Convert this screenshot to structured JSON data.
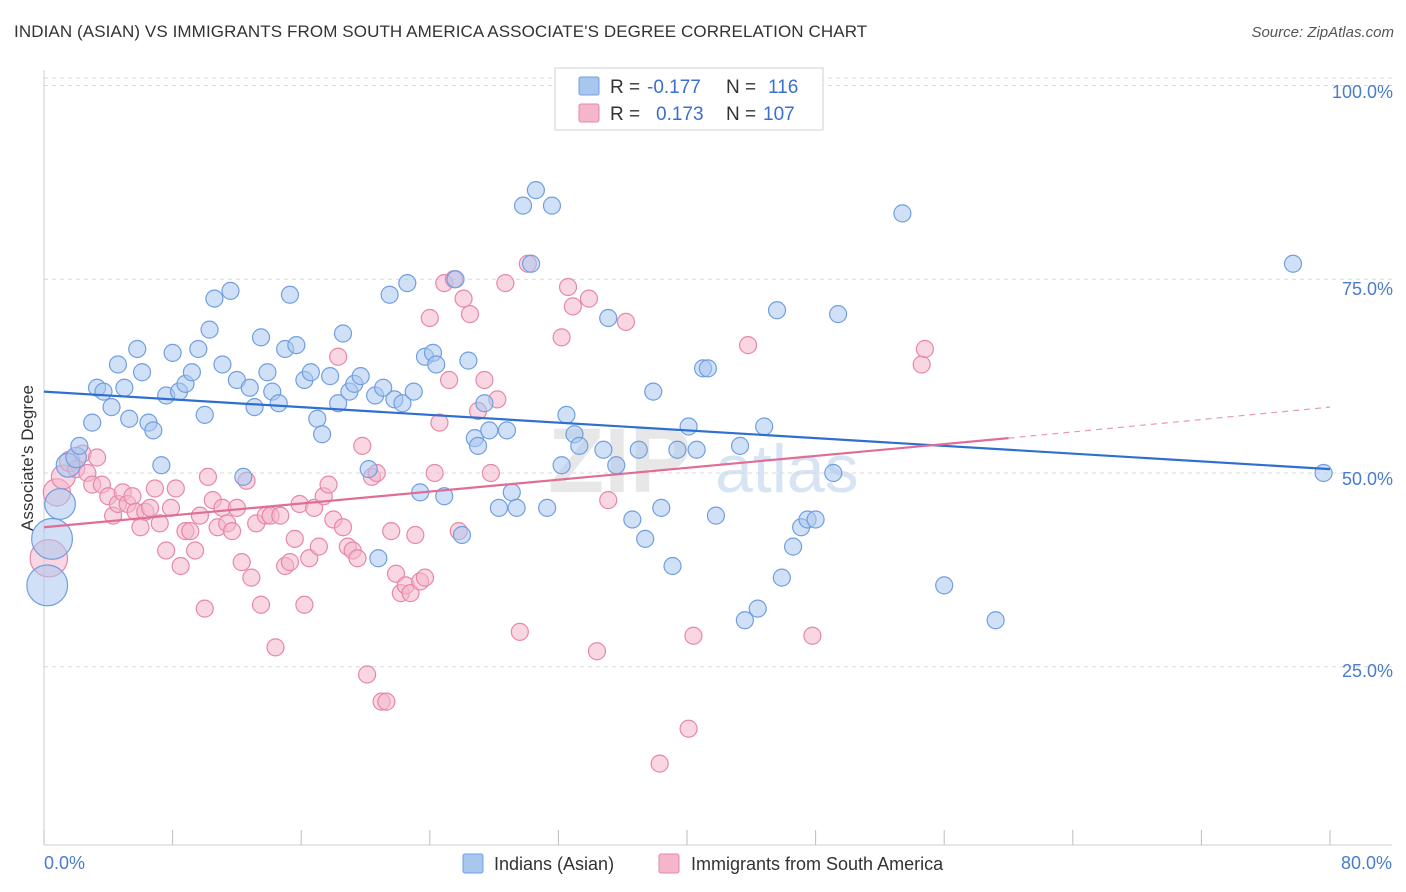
{
  "header": {
    "title": "INDIAN (ASIAN) VS IMMIGRANTS FROM SOUTH AMERICA ASSOCIATE'S DEGREE CORRELATION CHART",
    "source": "Source: ZipAtlas.com"
  },
  "watermark": {
    "zip": "ZIP",
    "atlas": "atlas"
  },
  "colors": {
    "blue_fill": "#a9c6ef",
    "blue_stroke": "#6f9fe0",
    "blue_line": "#2f6fcf",
    "pink_fill": "#f4b6cb",
    "pink_stroke": "#e886a8",
    "pink_line": "#e06d97",
    "grid": "#d9d9d9",
    "axis_text": "#4a7cc9"
  },
  "legend": {
    "rows": [
      {
        "r_label": "R =",
        "r_value": "-0.177",
        "n_label": "N =",
        "n_value": "116"
      },
      {
        "r_label": "R =",
        "r_value": "0.173",
        "n_label": "N =",
        "n_value": "107"
      }
    ]
  },
  "chart_data": {
    "type": "scatter",
    "title": "INDIAN (ASIAN) VS IMMIGRANTS FROM SOUTH AMERICA ASSOCIATE'S DEGREE CORRELATION CHART",
    "xlabel": "",
    "ylabel": "Associate's Degree",
    "xlim": [
      0,
      80
    ],
    "ylim": [
      2,
      102
    ],
    "x_tick_labels": [
      "0.0%",
      "80.0%"
    ],
    "y_ticks": [
      25,
      50,
      75,
      100
    ],
    "y_tick_labels": [
      "25.0%",
      "50.0%",
      "75.0%",
      "100.0%"
    ],
    "grid": true,
    "legend_position": "top-center",
    "series": [
      {
        "name": "Indians (Asian)",
        "color": "#a9c6ef",
        "r": -0.177,
        "n": 116,
        "trend": {
          "x": [
            0,
            80
          ],
          "y": [
            60.5,
            50.5
          ]
        },
        "points": [
          [
            0.2,
            35.5,
            2.4
          ],
          [
            0.5,
            41.5,
            2.4
          ],
          [
            1.0,
            46.0,
            1.8
          ],
          [
            1.5,
            51.0,
            1.4
          ],
          [
            2.0,
            52.0,
            1.2
          ],
          [
            2.2,
            53.5,
            1.0
          ],
          [
            3.0,
            56.5,
            1.0
          ],
          [
            3.3,
            61.0,
            1.0
          ],
          [
            3.7,
            60.5,
            1.0
          ],
          [
            4.2,
            58.5,
            1.0
          ],
          [
            4.6,
            64.0,
            1.0
          ],
          [
            5.0,
            61.0,
            1.0
          ],
          [
            5.3,
            57.0,
            1.0
          ],
          [
            5.8,
            66.0,
            1.0
          ],
          [
            6.1,
            63.0,
            1.0
          ],
          [
            6.5,
            56.5,
            1.0
          ],
          [
            6.8,
            55.5,
            1.0
          ],
          [
            7.3,
            51.0,
            1.0
          ],
          [
            7.6,
            60.0,
            1.0
          ],
          [
            8.0,
            65.5,
            1.0
          ],
          [
            8.4,
            60.5,
            1.0
          ],
          [
            8.8,
            61.5,
            1.0
          ],
          [
            9.2,
            63.0,
            1.0
          ],
          [
            9.6,
            66.0,
            1.0
          ],
          [
            10.0,
            57.5,
            1.0
          ],
          [
            10.3,
            68.5,
            1.0
          ],
          [
            10.6,
            72.5,
            1.0
          ],
          [
            11.1,
            64.0,
            1.0
          ],
          [
            11.6,
            73.5,
            1.0
          ],
          [
            12.0,
            62.0,
            1.0
          ],
          [
            12.4,
            49.5,
            1.0
          ],
          [
            12.8,
            61.0,
            1.0
          ],
          [
            13.1,
            58.5,
            1.0
          ],
          [
            13.5,
            67.5,
            1.0
          ],
          [
            13.9,
            63.0,
            1.0
          ],
          [
            14.2,
            60.5,
            1.0
          ],
          [
            14.6,
            59.0,
            1.0
          ],
          [
            15.0,
            66.0,
            1.0
          ],
          [
            15.3,
            73.0,
            1.0
          ],
          [
            15.7,
            66.5,
            1.0
          ],
          [
            16.2,
            62.0,
            1.0
          ],
          [
            16.6,
            63.0,
            1.0
          ],
          [
            17.0,
            57.0,
            1.0
          ],
          [
            17.3,
            55.0,
            1.0
          ],
          [
            17.8,
            62.5,
            1.0
          ],
          [
            18.3,
            59.0,
            1.0
          ],
          [
            18.6,
            68.0,
            1.0
          ],
          [
            19.0,
            60.5,
            1.0
          ],
          [
            19.3,
            61.5,
            1.0
          ],
          [
            19.7,
            62.5,
            1.0
          ],
          [
            20.2,
            50.5,
            1.0
          ],
          [
            20.6,
            60.0,
            1.0
          ],
          [
            20.8,
            39.0,
            1.0
          ],
          [
            21.1,
            61.0,
            1.0
          ],
          [
            21.5,
            73.0,
            1.0
          ],
          [
            21.8,
            59.5,
            1.0
          ],
          [
            22.3,
            59.0,
            1.0
          ],
          [
            22.6,
            74.5,
            1.0
          ],
          [
            23.0,
            60.5,
            1.0
          ],
          [
            23.4,
            47.5,
            1.0
          ],
          [
            23.7,
            65.0,
            1.0
          ],
          [
            24.2,
            65.5,
            1.0
          ],
          [
            24.4,
            64.0,
            1.0
          ],
          [
            24.9,
            47.0,
            1.0
          ],
          [
            25.6,
            75.0,
            1.0
          ],
          [
            26.0,
            42.0,
            1.0
          ],
          [
            26.4,
            64.5,
            1.0
          ],
          [
            26.8,
            54.5,
            1.0
          ],
          [
            27.0,
            53.5,
            1.0
          ],
          [
            27.4,
            59.0,
            1.0
          ],
          [
            27.7,
            55.5,
            1.0
          ],
          [
            28.3,
            45.5,
            1.0
          ],
          [
            28.8,
            55.5,
            1.0
          ],
          [
            29.1,
            47.5,
            1.0
          ],
          [
            29.4,
            45.5,
            1.0
          ],
          [
            29.8,
            84.5,
            1.0
          ],
          [
            30.3,
            77.0,
            1.0
          ],
          [
            30.6,
            86.5,
            1.0
          ],
          [
            31.3,
            45.5,
            1.0
          ],
          [
            31.6,
            84.5,
            1.0
          ],
          [
            32.2,
            51.0,
            1.0
          ],
          [
            32.5,
            57.5,
            1.0
          ],
          [
            33.0,
            55.0,
            1.0
          ],
          [
            33.3,
            53.5,
            1.0
          ],
          [
            34.8,
            53.0,
            1.0
          ],
          [
            35.1,
            70.0,
            1.0
          ],
          [
            35.6,
            51.0,
            1.0
          ],
          [
            36.6,
            44.0,
            1.0
          ],
          [
            37.0,
            53.0,
            1.0
          ],
          [
            37.4,
            41.5,
            1.0
          ],
          [
            37.9,
            60.5,
            1.0
          ],
          [
            38.4,
            45.5,
            1.0
          ],
          [
            39.1,
            38.0,
            1.0
          ],
          [
            39.4,
            53.0,
            1.0
          ],
          [
            40.1,
            56.0,
            1.0
          ],
          [
            40.6,
            53.0,
            1.0
          ],
          [
            41.0,
            63.5,
            1.0
          ],
          [
            41.3,
            63.5,
            1.0
          ],
          [
            41.8,
            44.5,
            1.0
          ],
          [
            43.3,
            53.5,
            1.0
          ],
          [
            43.6,
            31.0,
            1.0
          ],
          [
            44.4,
            32.5,
            1.0
          ],
          [
            44.8,
            56.0,
            1.0
          ],
          [
            45.6,
            71.0,
            1.0
          ],
          [
            45.9,
            36.5,
            1.0
          ],
          [
            46.6,
            40.5,
            1.0
          ],
          [
            47.1,
            43.0,
            1.0
          ],
          [
            47.5,
            44.0,
            1.0
          ],
          [
            48.0,
            44.0,
            1.0
          ],
          [
            49.1,
            50.0,
            1.0
          ],
          [
            49.4,
            70.5,
            1.0
          ],
          [
            53.4,
            83.5,
            1.0
          ],
          [
            56.0,
            35.5,
            1.0
          ],
          [
            59.2,
            31.0,
            1.0
          ],
          [
            77.7,
            77.0,
            1.0
          ],
          [
            79.6,
            50.0,
            1.0
          ]
        ]
      },
      {
        "name": "Immigrants from South America",
        "color": "#f4b6cb",
        "r": 0.173,
        "n": 107,
        "trend": {
          "x": [
            0,
            60
          ],
          "y": [
            43.0,
            54.5
          ]
        },
        "trend_dashed": {
          "x": [
            60,
            80
          ],
          "y": [
            54.5,
            58.5
          ]
        },
        "points": [
          [
            0.3,
            39.0,
            2.2
          ],
          [
            0.8,
            47.5,
            1.6
          ],
          [
            1.2,
            49.5,
            1.4
          ],
          [
            1.6,
            51.5,
            1.2
          ],
          [
            2.0,
            50.5,
            1.0
          ],
          [
            2.4,
            52.5,
            1.0
          ],
          [
            2.7,
            50.0,
            1.0
          ],
          [
            3.0,
            48.5,
            1.0
          ],
          [
            3.3,
            52.0,
            1.0
          ],
          [
            3.6,
            48.5,
            1.0
          ],
          [
            4.0,
            47.0,
            1.0
          ],
          [
            4.3,
            44.5,
            1.0
          ],
          [
            4.6,
            46.0,
            1.0
          ],
          [
            4.9,
            47.5,
            1.0
          ],
          [
            5.2,
            46.0,
            1.0
          ],
          [
            5.5,
            47.0,
            1.0
          ],
          [
            5.7,
            45.0,
            1.0
          ],
          [
            6.0,
            43.0,
            1.0
          ],
          [
            6.3,
            45.0,
            1.0
          ],
          [
            6.6,
            45.5,
            1.0
          ],
          [
            6.9,
            48.0,
            1.0
          ],
          [
            7.2,
            43.5,
            1.0
          ],
          [
            7.6,
            40.0,
            1.0
          ],
          [
            7.9,
            45.5,
            1.0
          ],
          [
            8.2,
            48.0,
            1.0
          ],
          [
            8.5,
            38.0,
            1.0
          ],
          [
            8.8,
            42.5,
            1.0
          ],
          [
            9.1,
            42.5,
            1.0
          ],
          [
            9.4,
            40.0,
            1.0
          ],
          [
            9.7,
            44.5,
            1.0
          ],
          [
            10.0,
            32.5,
            1.0
          ],
          [
            10.2,
            49.5,
            1.0
          ],
          [
            10.5,
            46.5,
            1.0
          ],
          [
            10.8,
            43.0,
            1.0
          ],
          [
            11.1,
            45.5,
            1.0
          ],
          [
            11.4,
            43.5,
            1.0
          ],
          [
            11.7,
            42.5,
            1.0
          ],
          [
            12.0,
            45.5,
            1.0
          ],
          [
            12.3,
            38.5,
            1.0
          ],
          [
            12.6,
            49.0,
            1.0
          ],
          [
            12.9,
            36.5,
            1.0
          ],
          [
            13.2,
            43.5,
            1.0
          ],
          [
            13.5,
            33.0,
            1.0
          ],
          [
            13.8,
            44.5,
            1.0
          ],
          [
            14.1,
            44.5,
            1.0
          ],
          [
            14.4,
            27.5,
            1.0
          ],
          [
            14.7,
            44.5,
            1.0
          ],
          [
            15.0,
            38.0,
            1.0
          ],
          [
            15.3,
            38.5,
            1.0
          ],
          [
            15.6,
            41.5,
            1.0
          ],
          [
            15.9,
            46.0,
            1.0
          ],
          [
            16.2,
            33.0,
            1.0
          ],
          [
            16.5,
            39.0,
            1.0
          ],
          [
            16.8,
            45.5,
            1.0
          ],
          [
            17.1,
            40.5,
            1.0
          ],
          [
            17.4,
            47.0,
            1.0
          ],
          [
            17.7,
            48.5,
            1.0
          ],
          [
            18.0,
            44.0,
            1.0
          ],
          [
            18.3,
            65.0,
            1.0
          ],
          [
            18.6,
            43.0,
            1.0
          ],
          [
            18.9,
            40.5,
            1.0
          ],
          [
            19.2,
            40.0,
            1.0
          ],
          [
            19.5,
            39.0,
            1.0
          ],
          [
            19.8,
            53.5,
            1.0
          ],
          [
            20.1,
            24.0,
            1.0
          ],
          [
            20.4,
            49.5,
            1.0
          ],
          [
            20.7,
            50.0,
            1.0
          ],
          [
            21.0,
            20.5,
            1.0
          ],
          [
            21.3,
            20.5,
            1.0
          ],
          [
            21.6,
            42.5,
            1.0
          ],
          [
            21.9,
            37.0,
            1.0
          ],
          [
            22.2,
            34.5,
            1.0
          ],
          [
            22.5,
            35.5,
            1.0
          ],
          [
            22.8,
            34.5,
            1.0
          ],
          [
            23.1,
            42.0,
            1.0
          ],
          [
            23.4,
            36.0,
            1.0
          ],
          [
            23.7,
            36.5,
            1.0
          ],
          [
            24.0,
            70.0,
            1.0
          ],
          [
            24.3,
            50.0,
            1.0
          ],
          [
            24.6,
            56.5,
            1.0
          ],
          [
            24.9,
            74.5,
            1.0
          ],
          [
            25.2,
            62.0,
            1.0
          ],
          [
            25.5,
            75.0,
            1.0
          ],
          [
            25.8,
            42.5,
            1.0
          ],
          [
            26.1,
            72.5,
            1.0
          ],
          [
            26.5,
            70.5,
            1.0
          ],
          [
            27.0,
            58.0,
            1.0
          ],
          [
            27.4,
            62.0,
            1.0
          ],
          [
            27.8,
            50.0,
            1.0
          ],
          [
            28.2,
            59.5,
            1.0
          ],
          [
            28.7,
            74.5,
            1.0
          ],
          [
            29.6,
            29.5,
            1.0
          ],
          [
            30.1,
            77.0,
            1.0
          ],
          [
            32.2,
            67.5,
            1.0
          ],
          [
            32.6,
            74.0,
            1.0
          ],
          [
            32.9,
            71.5,
            1.0
          ],
          [
            33.9,
            72.5,
            1.0
          ],
          [
            34.4,
            27.0,
            1.0
          ],
          [
            35.1,
            46.5,
            1.0
          ],
          [
            36.2,
            69.5,
            1.0
          ],
          [
            38.3,
            12.5,
            1.0
          ],
          [
            40.1,
            17.0,
            1.0
          ],
          [
            40.4,
            29.0,
            1.0
          ],
          [
            43.8,
            66.5,
            1.0
          ],
          [
            47.8,
            29.0,
            1.0
          ],
          [
            54.6,
            64.0,
            1.0
          ],
          [
            54.8,
            66.0,
            1.0
          ]
        ]
      }
    ]
  },
  "bottom_legend": [
    {
      "label": "Indians (Asian)"
    },
    {
      "label": "Immigrants from South America"
    }
  ]
}
